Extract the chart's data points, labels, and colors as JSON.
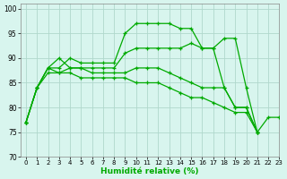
{
  "title": "",
  "xlabel": "Humidité relative (%)",
  "ylabel": "",
  "xlim": [
    -0.5,
    23
  ],
  "ylim": [
    70,
    101
  ],
  "yticks": [
    70,
    75,
    80,
    85,
    90,
    95,
    100
  ],
  "xticks": [
    0,
    1,
    2,
    3,
    4,
    5,
    6,
    7,
    8,
    9,
    10,
    11,
    12,
    13,
    14,
    15,
    16,
    17,
    18,
    19,
    20,
    21,
    22,
    23
  ],
  "bg_color": "#d8f5ee",
  "grid_color": "#b0d8cc",
  "line_color": "#00aa00",
  "lines": [
    {
      "x": [
        0,
        1,
        2,
        3,
        4,
        5,
        6,
        7,
        8,
        9,
        10,
        11,
        12,
        13,
        14,
        15,
        16,
        17,
        18,
        19,
        20,
        21,
        22,
        23
      ],
      "y": [
        77,
        84,
        88,
        88,
        90,
        89,
        89,
        89,
        89,
        95,
        97,
        97,
        97,
        97,
        96,
        96,
        92,
        92,
        94,
        94,
        84,
        75,
        78,
        78
      ]
    },
    {
      "x": [
        0,
        1,
        2,
        3,
        4,
        5,
        6,
        7,
        8,
        9,
        10,
        11,
        12,
        13,
        14,
        15,
        16,
        17,
        18,
        19,
        20,
        21
      ],
      "y": [
        77,
        84,
        88,
        90,
        88,
        88,
        88,
        88,
        88,
        91,
        92,
        92,
        92,
        92,
        92,
        93,
        92,
        92,
        84,
        80,
        80,
        75
      ]
    },
    {
      "x": [
        0,
        1,
        2,
        3,
        4,
        5,
        6,
        7,
        8,
        9,
        10,
        11,
        12,
        13,
        14,
        15,
        16,
        17,
        18,
        19,
        20,
        21
      ],
      "y": [
        77,
        84,
        88,
        87,
        88,
        88,
        87,
        87,
        87,
        87,
        88,
        88,
        88,
        87,
        86,
        85,
        84,
        84,
        84,
        80,
        80,
        75
      ]
    },
    {
      "x": [
        0,
        1,
        2,
        3,
        4,
        5,
        6,
        7,
        8,
        9,
        10,
        11,
        12,
        13,
        14,
        15,
        16,
        17,
        18,
        19,
        20,
        21
      ],
      "y": [
        77,
        84,
        87,
        87,
        87,
        86,
        86,
        86,
        86,
        86,
        85,
        85,
        85,
        84,
        83,
        82,
        82,
        81,
        80,
        79,
        79,
        75
      ]
    }
  ]
}
